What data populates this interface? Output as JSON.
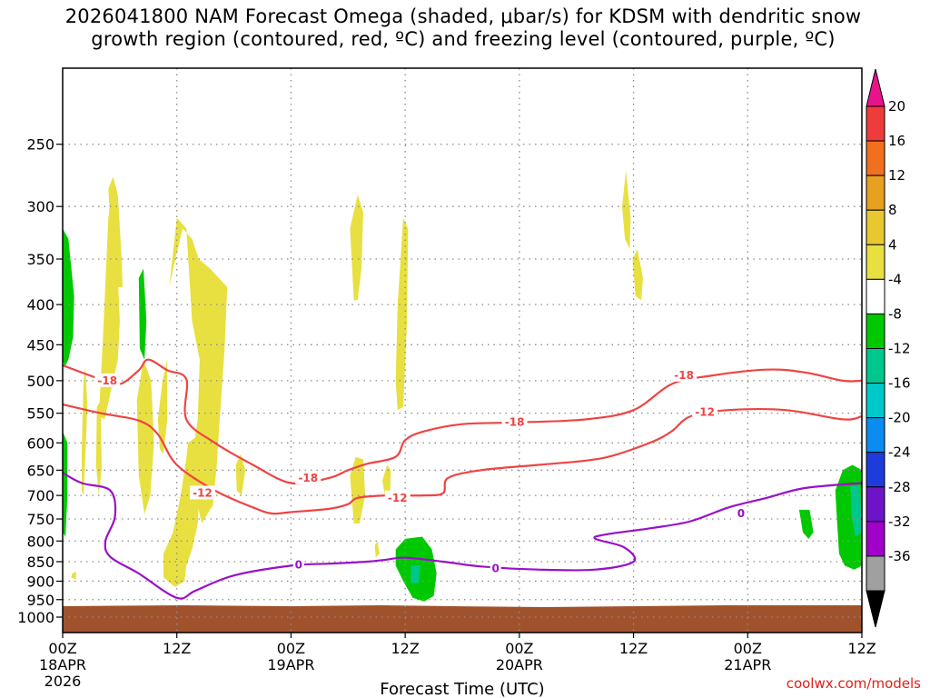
{
  "title_line1": "2026041800 NAM Forecast Omega (shaded, μbar/s) for KDSM with dendritic snow",
  "title_line2": "growth region (contoured, red, ºC) and freezing level (contoured, purple, ºC)",
  "credit": "coolwx.com/models",
  "chart_data": {
    "type": "time-height",
    "title": "2026041800 NAM Forecast Omega (shaded, μbar/s) for KDSM with dendritic snow growth region (contoured, red, ºC) and freezing level (contoured, purple, ºC)",
    "xlabel": "Forecast Time (UTC)",
    "ylabel": "",
    "xlim_hours": [
      0,
      84
    ],
    "ylim_hpa": [
      1000,
      200
    ],
    "x_ticks": [
      {
        "hour": 0,
        "label": "00Z",
        "sub": "18APR",
        "sub2": "2026"
      },
      {
        "hour": 12,
        "label": "12Z",
        "sub": "",
        "sub2": ""
      },
      {
        "hour": 24,
        "label": "00Z",
        "sub": "19APR",
        "sub2": ""
      },
      {
        "hour": 36,
        "label": "12Z",
        "sub": "",
        "sub2": ""
      },
      {
        "hour": 48,
        "label": "00Z",
        "sub": "20APR",
        "sub2": ""
      },
      {
        "hour": 60,
        "label": "12Z",
        "sub": "",
        "sub2": ""
      },
      {
        "hour": 72,
        "label": "00Z",
        "sub": "21APR",
        "sub2": ""
      },
      {
        "hour": 84,
        "label": "12Z",
        "sub": "",
        "sub2": ""
      }
    ],
    "y_ticks": [
      250,
      300,
      350,
      400,
      450,
      500,
      550,
      600,
      650,
      700,
      750,
      800,
      850,
      900,
      950,
      1000
    ],
    "colorbar": {
      "labels": [
        "20",
        "16",
        "12",
        "8",
        "4",
        "-4",
        "-8",
        "-12",
        "-16",
        "-20",
        "-24",
        "-28",
        "-32",
        "-36"
      ],
      "colors": [
        "#e8138a",
        "#ee3b3b",
        "#f07020",
        "#e8a020",
        "#e8c830",
        "#e8e040",
        "#ffffff",
        "#00c800",
        "#00c88c",
        "#00c8c8",
        "#0a8cf0",
        "#1e3cdc",
        "#6e14c8",
        "#a000c8",
        "#a0a0a0",
        "#000000"
      ]
    },
    "contours": {
      "dgz_minus12": {
        "label": "-12",
        "color": "#ee4444",
        "points": [
          [
            0,
            536
          ],
          [
            4,
            550
          ],
          [
            8,
            562
          ],
          [
            10,
            585
          ],
          [
            12,
            640
          ],
          [
            16,
            690
          ],
          [
            20,
            725
          ],
          [
            22,
            738
          ],
          [
            24,
            735
          ],
          [
            28,
            728
          ],
          [
            30,
            718
          ],
          [
            31,
            705
          ],
          [
            34,
            700
          ],
          [
            38,
            700
          ],
          [
            40,
            695
          ],
          [
            40.5,
            665
          ],
          [
            44,
            650
          ],
          [
            50,
            640
          ],
          [
            55,
            632
          ],
          [
            58,
            622
          ],
          [
            62,
            598
          ],
          [
            64,
            580
          ],
          [
            66,
            555
          ],
          [
            70,
            545
          ],
          [
            76,
            545
          ],
          [
            82,
            560
          ],
          [
            84,
            555
          ]
        ]
      },
      "dgz_minus18": {
        "label": "-18",
        "color": "#ee4444",
        "points": [
          [
            0,
            478
          ],
          [
            4,
            498
          ],
          [
            6,
            505
          ],
          [
            8,
            485
          ],
          [
            9,
            470
          ],
          [
            11,
            485
          ],
          [
            13,
            498
          ],
          [
            13,
            560
          ],
          [
            16,
            600
          ],
          [
            20,
            640
          ],
          [
            24,
            675
          ],
          [
            28,
            665
          ],
          [
            30,
            650
          ],
          [
            32,
            638
          ],
          [
            35,
            625
          ],
          [
            36,
            595
          ],
          [
            38,
            580
          ],
          [
            42,
            568
          ],
          [
            48,
            565
          ],
          [
            55,
            560
          ],
          [
            60,
            545
          ],
          [
            64,
            505
          ],
          [
            68,
            493
          ],
          [
            74,
            484
          ],
          [
            78,
            488
          ],
          [
            82,
            500
          ],
          [
            84,
            500
          ]
        ]
      },
      "freezing_0": {
        "label": "0",
        "color": "#9a10c8",
        "points": [
          [
            0,
            655
          ],
          [
            2,
            675
          ],
          [
            5,
            690
          ],
          [
            5.5,
            745
          ],
          [
            4.5,
            800
          ],
          [
            5,
            838
          ],
          [
            8,
            880
          ],
          [
            12,
            945
          ],
          [
            14,
            925
          ],
          [
            18,
            885
          ],
          [
            24,
            860
          ],
          [
            28,
            855
          ],
          [
            32,
            850
          ],
          [
            34,
            845
          ],
          [
            36,
            840
          ],
          [
            40,
            850
          ],
          [
            44,
            862
          ],
          [
            50,
            870
          ],
          [
            56,
            870
          ],
          [
            60,
            850
          ],
          [
            59,
            815
          ],
          [
            56,
            795
          ],
          [
            57,
            785
          ],
          [
            62,
            770
          ],
          [
            66,
            755
          ],
          [
            70,
            725
          ],
          [
            74,
            705
          ],
          [
            78,
            685
          ],
          [
            84,
            675
          ]
        ]
      }
    },
    "omega_regions_hours_hpa": [
      {
        "sign": "positive",
        "t_center": 4.5,
        "p_range": [
          285,
          550
        ]
      },
      {
        "sign": "positive",
        "t_center": 12,
        "p_range": [
          320,
          915
        ]
      },
      {
        "sign": "positive",
        "t_center": 15,
        "p_range": [
          350,
          720
        ]
      },
      {
        "sign": "positive",
        "t_center": 30,
        "p_range": [
          290,
          400
        ]
      },
      {
        "sign": "positive",
        "t_center": 30.5,
        "p_range": [
          625,
          760
        ]
      },
      {
        "sign": "positive",
        "t_center": 35.5,
        "p_range": [
          310,
          540
        ]
      },
      {
        "sign": "positive",
        "t_center": 59,
        "p_range": [
          265,
          400
        ]
      },
      {
        "sign": "negative",
        "t_center": 0.3,
        "p_range": [
          320,
          790
        ]
      },
      {
        "sign": "negative",
        "t_center": 36.5,
        "p_range": [
          790,
          950
        ]
      },
      {
        "sign": "negative",
        "t_center": 83,
        "p_range": [
          640,
          880
        ]
      },
      {
        "sign": "negative",
        "t_center": 78,
        "p_range": [
          730,
          790
        ]
      }
    ]
  }
}
